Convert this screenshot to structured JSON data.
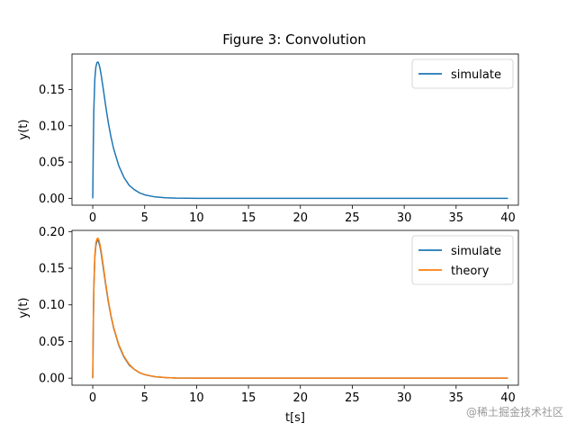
{
  "watermark": "@稀土掘金技术社区",
  "chart_data": [
    {
      "type": "line",
      "title": "Figure 3: Convolution",
      "xlabel": "",
      "ylabel": "y(t)",
      "xlim": [
        -2,
        41
      ],
      "ylim": [
        -0.0095,
        0.199
      ],
      "xticks": [
        0,
        5,
        10,
        15,
        20,
        25,
        30,
        35,
        40
      ],
      "yticks": [
        0.0,
        0.05,
        0.1,
        0.15
      ],
      "ytick_labels": [
        "0.00",
        "0.05",
        "0.10",
        "0.15"
      ],
      "legend": "top-right",
      "grid": false,
      "series": [
        {
          "name": "simulate",
          "color": "#1f77b4",
          "x": [
            0,
            0.05,
            0.1,
            0.2,
            0.3,
            0.4,
            0.5,
            0.6,
            0.7,
            0.8,
            1.0,
            1.25,
            1.5,
            1.75,
            2.0,
            2.5,
            3.0,
            3.5,
            4.0,
            4.5,
            5.0,
            6.0,
            7.0,
            8.0,
            10.0,
            15,
            20,
            25,
            30,
            35,
            40
          ],
          "y": [
            0.0,
            0.07,
            0.12,
            0.165,
            0.181,
            0.187,
            0.188,
            0.185,
            0.179,
            0.171,
            0.152,
            0.127,
            0.104,
            0.085,
            0.069,
            0.045,
            0.029,
            0.018,
            0.012,
            0.0075,
            0.0048,
            0.0019,
            0.0008,
            0.0003,
            0.0,
            0.0,
            0.0,
            0.0,
            0.0,
            0.0,
            0.0
          ]
        }
      ]
    },
    {
      "type": "line",
      "title": "",
      "xlabel": "t[s]",
      "ylabel": "y(t)",
      "xlim": [
        -2,
        41
      ],
      "ylim": [
        -0.0096,
        0.2016
      ],
      "xticks": [
        0,
        5,
        10,
        15,
        20,
        25,
        30,
        35,
        40
      ],
      "yticks": [
        0.0,
        0.05,
        0.1,
        0.15,
        0.2
      ],
      "ytick_labels": [
        "0.00",
        "0.05",
        "0.10",
        "0.15",
        "0.20"
      ],
      "legend": "top-right",
      "grid": false,
      "series": [
        {
          "name": "simulate",
          "color": "#1f77b4",
          "x": [
            0,
            0.05,
            0.1,
            0.2,
            0.3,
            0.4,
            0.5,
            0.6,
            0.7,
            0.8,
            1.0,
            1.25,
            1.5,
            1.75,
            2.0,
            2.5,
            3.0,
            3.5,
            4.0,
            4.5,
            5.0,
            6.0,
            7.0,
            8.0,
            10.0,
            15,
            20,
            25,
            30,
            35,
            40
          ],
          "y": [
            0.0,
            0.07,
            0.12,
            0.165,
            0.181,
            0.187,
            0.188,
            0.185,
            0.179,
            0.171,
            0.152,
            0.127,
            0.104,
            0.085,
            0.069,
            0.045,
            0.029,
            0.018,
            0.012,
            0.0075,
            0.0048,
            0.0019,
            0.0008,
            0.0003,
            0.0,
            0.0,
            0.0,
            0.0,
            0.0,
            0.0,
            0.0
          ]
        },
        {
          "name": "theory",
          "color": "#ff7f0e",
          "x": [
            0,
            0.05,
            0.1,
            0.2,
            0.3,
            0.4,
            0.5,
            0.6,
            0.7,
            0.8,
            1.0,
            1.25,
            1.5,
            1.75,
            2.0,
            2.5,
            3.0,
            3.5,
            4.0,
            4.5,
            5.0,
            6.0,
            7.0,
            8.0,
            10.0,
            15,
            20,
            25,
            30,
            35,
            40
          ],
          "y": [
            0.0,
            0.075,
            0.125,
            0.168,
            0.184,
            0.19,
            0.191,
            0.188,
            0.182,
            0.174,
            0.155,
            0.129,
            0.106,
            0.086,
            0.07,
            0.046,
            0.03,
            0.019,
            0.012,
            0.0077,
            0.0049,
            0.002,
            0.0008,
            0.0003,
            0.0,
            0.0,
            0.0,
            0.0,
            0.0,
            0.0,
            0.0
          ]
        }
      ]
    }
  ]
}
